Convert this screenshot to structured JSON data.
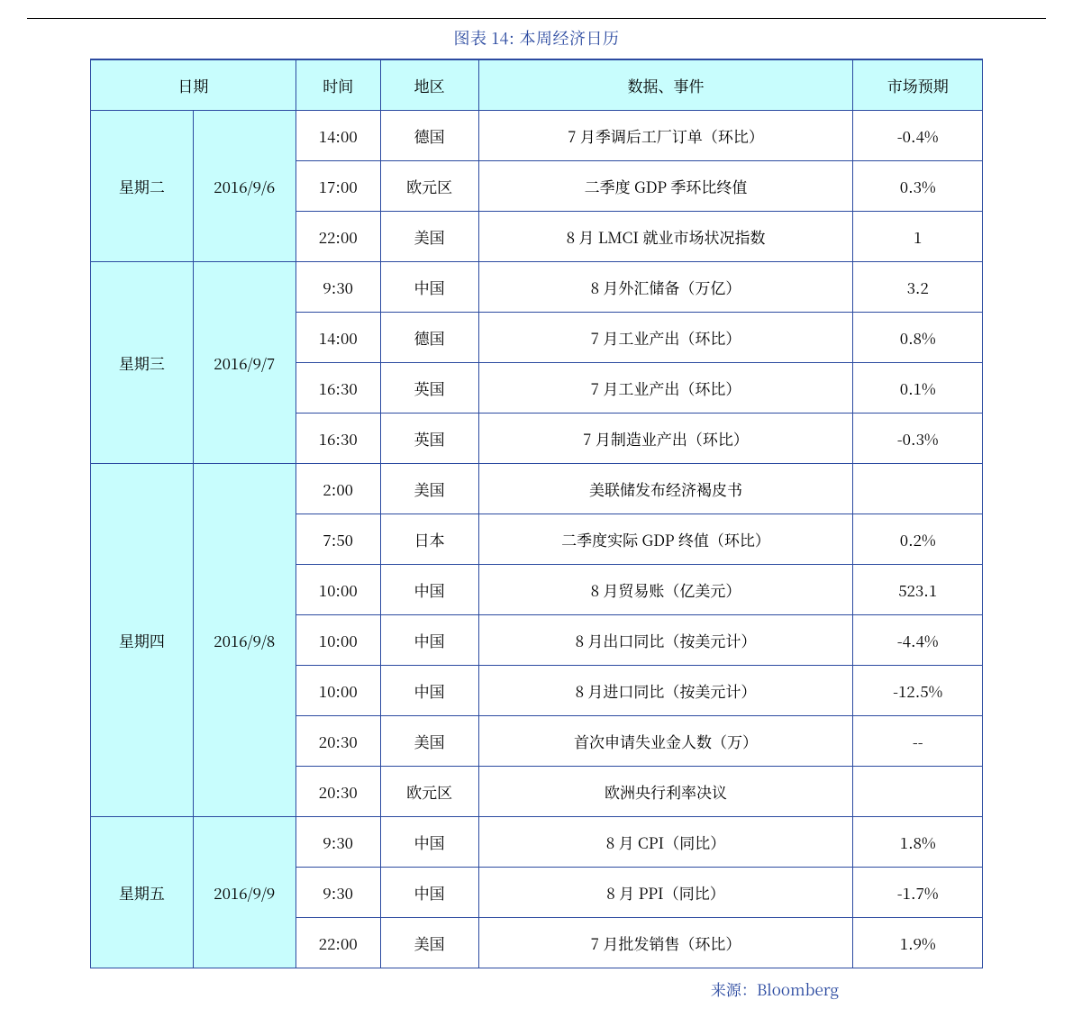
{
  "title": "图表 14:  本周经济日历",
  "source_label": "来源：",
  "source_value": "Bloomberg",
  "colors": {
    "border": "#2b4aa0",
    "header_bg": "#c8fdfd",
    "text_accent": "#2b4aa0",
    "page_bg": "#ffffff"
  },
  "fonts": {
    "base_pt": 17,
    "caption_pt": 18
  },
  "columns": {
    "date": "日期",
    "time": "时间",
    "region": "地区",
    "event": "数据、事件",
    "expect": "市场预期"
  },
  "groups": [
    {
      "day": "星期二",
      "date": "2016/9/6",
      "rows": [
        {
          "time": "14:00",
          "region": "德国",
          "event": "7 月季调后工厂订单（环比）",
          "expect": "-0.4%"
        },
        {
          "time": "17:00",
          "region": "欧元区",
          "event": "二季度 GDP 季环比终值",
          "expect": "0.3%"
        },
        {
          "time": "22:00",
          "region": "美国",
          "event": "8 月 LMCI 就业市场状况指数",
          "expect": "1"
        }
      ]
    },
    {
      "day": "星期三",
      "date": "2016/9/7",
      "rows": [
        {
          "time": "9:30",
          "region": "中国",
          "event": "8 月外汇储备（万亿）",
          "expect": "3.2"
        },
        {
          "time": "14:00",
          "region": "德国",
          "event": "7 月工业产出（环比）",
          "expect": "0.8%"
        },
        {
          "time": "16:30",
          "region": "英国",
          "event": "7 月工业产出（环比）",
          "expect": "0.1%"
        },
        {
          "time": "16:30",
          "region": "英国",
          "event": "7 月制造业产出（环比）",
          "expect": "-0.3%"
        }
      ]
    },
    {
      "day": "星期四",
      "date": "2016/9/8",
      "rows": [
        {
          "time": "2:00",
          "region": "美国",
          "event": "美联储发布经济褐皮书",
          "expect": ""
        },
        {
          "time": "7:50",
          "region": "日本",
          "event": "二季度实际 GDP 终值（环比）",
          "expect": "0.2%"
        },
        {
          "time": "10:00",
          "region": "中国",
          "event": "8 月贸易账（亿美元）",
          "expect": "523.1"
        },
        {
          "time": "10:00",
          "region": "中国",
          "event": "8 月出口同比（按美元计）",
          "expect": "-4.4%"
        },
        {
          "time": "10:00",
          "region": "中国",
          "event": "8 月进口同比（按美元计）",
          "expect": "-12.5%"
        },
        {
          "time": "20:30",
          "region": "美国",
          "event": "首次申请失业金人数（万）",
          "expect": "--"
        },
        {
          "time": "20:30",
          "region": "欧元区",
          "event": "欧洲央行利率决议",
          "expect": ""
        }
      ]
    },
    {
      "day": "星期五",
      "date": "2016/9/9",
      "rows": [
        {
          "time": "9:30",
          "region": "中国",
          "event": "8 月 CPI（同比）",
          "expect": "1.8%"
        },
        {
          "time": "9:30",
          "region": "中国",
          "event": "8 月 PPI（同比）",
          "expect": "-1.7%"
        },
        {
          "time": "22:00",
          "region": "美国",
          "event": "7 月批发销售（环比）",
          "expect": "1.9%"
        }
      ]
    }
  ]
}
